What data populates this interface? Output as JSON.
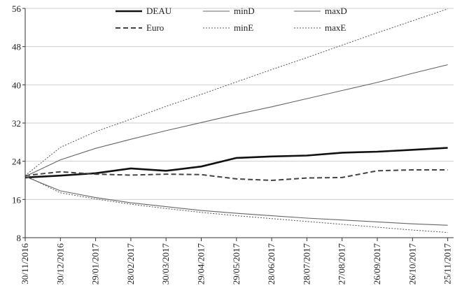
{
  "chart_data": {
    "type": "line",
    "title": "",
    "xlabel": "",
    "ylabel": "",
    "xlim": [
      "2016-11-30",
      "2017-11-30"
    ],
    "ylim": [
      8,
      56
    ],
    "yticks": [
      8,
      16,
      24,
      32,
      40,
      48,
      56
    ],
    "xticks": [
      "30/11/2016",
      "30/12/2016",
      "29/01/2017",
      "28/02/2017",
      "30/03/2017",
      "29/04/2017",
      "29/05/2017",
      "28/06/2017",
      "28/07/2017",
      "27/08/2017",
      "26/09/2017",
      "26/10/2017",
      "25/11/2017"
    ],
    "grid": "horizontal",
    "legend_position": "top",
    "x": [
      "30/11/2016",
      "30/12/2016",
      "29/01/2017",
      "28/02/2017",
      "30/03/2017",
      "29/04/2017",
      "29/05/2017",
      "28/06/2017",
      "28/07/2017",
      "27/08/2017",
      "26/09/2017",
      "26/10/2017",
      "25/11/2017"
    ],
    "series": [
      {
        "name": "DEAU",
        "style": "thick-solid",
        "values": [
          20.6,
          21.0,
          21.5,
          22.5,
          22.0,
          22.9,
          24.7,
          25.0,
          25.2,
          25.8,
          26.0,
          26.4,
          26.8
        ]
      },
      {
        "name": "Euro",
        "style": "dashed",
        "values": [
          21.0,
          21.8,
          21.3,
          21.1,
          21.3,
          21.2,
          20.3,
          20.0,
          20.5,
          20.6,
          22.0,
          22.2,
          22.2
        ]
      },
      {
        "name": "minD",
        "style": "thin-solid",
        "values": [
          20.8,
          17.8,
          16.4,
          15.3,
          14.5,
          13.7,
          13.1,
          12.6,
          12.1,
          11.7,
          11.3,
          10.9,
          10.6
        ]
      },
      {
        "name": "maxD",
        "style": "thin-solid",
        "values": [
          20.8,
          24.3,
          26.7,
          28.6,
          30.4,
          32.1,
          33.8,
          35.4,
          37.1,
          38.8,
          40.5,
          42.4,
          44.2
        ]
      },
      {
        "name": "minE",
        "style": "dotted",
        "values": [
          21.0,
          17.4,
          16.1,
          15.0,
          14.1,
          13.3,
          12.6,
          12.0,
          11.4,
          10.8,
          10.2,
          9.6,
          9.1
        ]
      },
      {
        "name": "maxE",
        "style": "dotted",
        "values": [
          21.0,
          26.9,
          30.2,
          32.8,
          35.5,
          38.0,
          40.6,
          43.2,
          45.7,
          48.3,
          50.9,
          53.4,
          55.9
        ]
      }
    ],
    "legend": [
      {
        "name": "DEAU",
        "style": "thick-solid"
      },
      {
        "name": "minD",
        "style": "thin-solid"
      },
      {
        "name": "maxD",
        "style": "thin-solid"
      },
      {
        "name": "Euro",
        "style": "dashed"
      },
      {
        "name": "minE",
        "style": "dotted"
      },
      {
        "name": "maxE",
        "style": "dotted"
      }
    ]
  }
}
